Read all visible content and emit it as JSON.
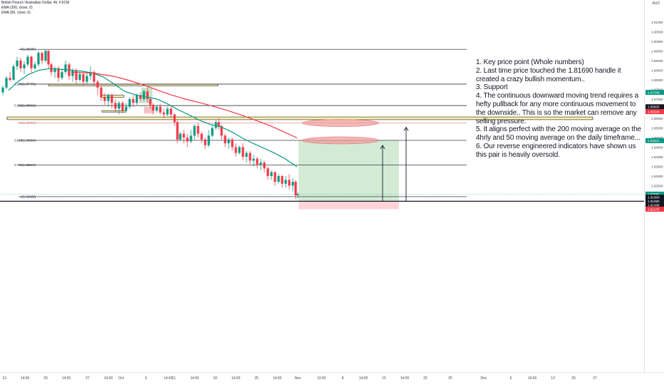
{
  "header": {
    "symbol_line": "British Pound / Australian Dollar, 4h, FXCM",
    "ema200_label": "EMA (200, close, 0)",
    "ema50_label": "EMA (50, close, 0)",
    "currency": "AUD"
  },
  "annotation": {
    "text": "1. Key price point (Whole numbers)\n2. Last time price touched the 1.81690 handle it created a crazy bullish momentum..\n3. Support\n4. The continuous downward moving trend requires a hefty pullback for any more continuous movement to the downside.. This is so the market can remove any selling pressure.\n5. It aligns perfect with the 200 moving average on the 4hrly and 50 moving average on the daily timeframe...\n6. Our reverse engineered indicators have shown us this pair is heavily oversold."
  },
  "chart_data": {
    "type": "candlestick",
    "timeframe": "4h",
    "y_axis": {
      "range": [
        1.8115,
        1.9125
      ],
      "ticks": [
        "1.91000",
        "1.90500",
        "1.90000",
        "1.89500",
        "1.89000",
        "1.88500",
        "1.88000",
        "1.87500",
        "1.87000",
        "1.86500",
        "1.86000",
        "1.85500",
        "1.85000",
        "1.84500",
        "1.84000",
        "1.83500",
        "1.83000",
        "1.82500",
        "1.82000",
        "1.81500"
      ],
      "price_tags": [
        {
          "value": 1.87348,
          "label": "1.87348",
          "color": "#089981"
        },
        {
          "value": 1.866,
          "label": "1.86600",
          "color": "#131722"
        },
        {
          "value": 1.86346,
          "label": "1.86346",
          "color": "#f23645"
        },
        {
          "value": 1.84841,
          "label": "1.84841",
          "color": "#089981"
        },
        {
          "value": 1.8206,
          "label": "1.82060",
          "color": "#089981"
        },
        {
          "value": 1.819,
          "label": "1.81900",
          "color": "#131722"
        },
        {
          "value": 1.8169,
          "label": "1.81690",
          "color": "#131722"
        },
        {
          "value": 1.81488,
          "label": "1.81488",
          "color": "#131722"
        },
        {
          "value": 1.81278,
          "label": "1.81278",
          "color": "#f23645"
        }
      ]
    },
    "x_axis": {
      "ticks": [
        "13",
        "14:00",
        "20",
        "14:00",
        "27",
        "14:00",
        "Oct",
        "6",
        "14:00",
        "11",
        "14:00",
        "18",
        "14:00",
        "25",
        "14:00",
        "Nov",
        "13:00",
        "8",
        "14:00",
        "15",
        "14:00",
        "22",
        "25",
        "Dec",
        "6",
        "14:00",
        "13",
        "20",
        "27"
      ]
    },
    "fibonacci": [
      {
        "level": "0",
        "value": 1.89586,
        "label": "0(1.89586)"
      },
      {
        "level": "0.236",
        "value": 1.87779,
        "label": "0.236(1.87779)"
      },
      {
        "level": "0.382",
        "value": 1.86661,
        "label": "0.382(1.86661)"
      },
      {
        "level": "0.5",
        "value": 1.85757,
        "label": "0.5(1.85757)",
        "color": "#e57373"
      },
      {
        "level": "0.618",
        "value": 1.84854,
        "label": "0.618(1.84854)"
      },
      {
        "level": "0.786",
        "value": 1.83567,
        "label": "0.786(1.83567)"
      },
      {
        "level": "1",
        "value": 1.81928,
        "label": "1(1.81928)"
      }
    ],
    "series": [
      {
        "name": "EMA (50, close, 0)",
        "color": "#089981",
        "points": [
          [
            12,
            1.8745
          ],
          [
            25,
            1.879
          ],
          [
            40,
            1.8828
          ],
          [
            55,
            1.885
          ],
          [
            70,
            1.8858
          ],
          [
            85,
            1.8855
          ],
          [
            100,
            1.885
          ],
          [
            115,
            1.8845
          ],
          [
            130,
            1.8835
          ],
          [
            145,
            1.8815
          ],
          [
            160,
            1.8778
          ],
          [
            175,
            1.874
          ],
          [
            190,
            1.8722
          ],
          [
            205,
            1.8712
          ],
          [
            220,
            1.87
          ],
          [
            235,
            1.8675
          ],
          [
            250,
            1.8645
          ],
          [
            265,
            1.8618
          ],
          [
            280,
            1.859
          ],
          [
            295,
            1.8568
          ],
          [
            310,
            1.8555
          ],
          [
            325,
            1.853
          ],
          [
            340,
            1.8498
          ],
          [
            355,
            1.847
          ],
          [
            370,
            1.8445
          ],
          [
            385,
            1.842
          ],
          [
            400,
            1.839
          ],
          [
            417,
            1.8348
          ]
        ]
      },
      {
        "name": "EMA (200, close, 0)",
        "color": "#f23645",
        "points": [
          [
            100,
            1.884
          ],
          [
            130,
            1.8835
          ],
          [
            160,
            1.8818
          ],
          [
            180,
            1.8798
          ],
          [
            200,
            1.8775
          ],
          [
            220,
            1.8748
          ],
          [
            240,
            1.8722
          ],
          [
            260,
            1.87
          ],
          [
            280,
            1.8682
          ],
          [
            300,
            1.8662
          ],
          [
            320,
            1.864
          ],
          [
            340,
            1.8615
          ],
          [
            360,
            1.8588
          ],
          [
            380,
            1.856
          ],
          [
            400,
            1.8527
          ],
          [
            417,
            1.8498
          ]
        ]
      }
    ],
    "candles": [
      [
        4,
        1.8735,
        1.876,
        1.872,
        1.877
      ],
      [
        9,
        1.876,
        1.881,
        1.875,
        1.882
      ],
      [
        14,
        1.881,
        1.88,
        1.879,
        1.884
      ],
      [
        19,
        1.88,
        1.887,
        1.8795,
        1.888
      ],
      [
        24,
        1.887,
        1.89,
        1.885,
        1.892
      ],
      [
        29,
        1.89,
        1.886,
        1.884,
        1.8915
      ],
      [
        34,
        1.886,
        1.888,
        1.883,
        1.8895
      ],
      [
        39,
        1.888,
        1.892,
        1.887,
        1.893
      ],
      [
        44,
        1.892,
        1.886,
        1.884,
        1.8925
      ],
      [
        49,
        1.886,
        1.888,
        1.885,
        1.8895
      ],
      [
        54,
        1.888,
        1.894,
        1.887,
        1.895
      ],
      [
        59,
        1.894,
        1.89,
        1.888,
        1.8945
      ],
      [
        64,
        1.89,
        1.895,
        1.889,
        1.8959
      ],
      [
        68,
        1.895,
        1.888,
        1.886,
        1.8955
      ],
      [
        72,
        1.888,
        1.884,
        1.882,
        1.889
      ],
      [
        77,
        1.884,
        1.886,
        1.881,
        1.887
      ],
      [
        82,
        1.886,
        1.881,
        1.879,
        1.887
      ],
      [
        87,
        1.881,
        1.884,
        1.88,
        1.8855
      ],
      [
        92,
        1.884,
        1.888,
        1.883,
        1.89
      ],
      [
        97,
        1.888,
        1.882,
        1.88,
        1.889
      ],
      [
        102,
        1.882,
        1.885,
        1.879,
        1.886
      ],
      [
        107,
        1.885,
        1.88,
        1.878,
        1.886
      ],
      [
        112,
        1.88,
        1.883,
        1.879,
        1.8845
      ],
      [
        117,
        1.883,
        1.879,
        1.877,
        1.8845
      ],
      [
        122,
        1.879,
        1.882,
        1.878,
        1.8835
      ],
      [
        127,
        1.882,
        1.884,
        1.88,
        1.887
      ],
      [
        132,
        1.884,
        1.879,
        1.877,
        1.885
      ],
      [
        137,
        1.879,
        1.876,
        1.872,
        1.88
      ],
      [
        142,
        1.876,
        1.871,
        1.869,
        1.877
      ],
      [
        147,
        1.871,
        1.869,
        1.867,
        1.873
      ],
      [
        152,
        1.869,
        1.872,
        1.866,
        1.873
      ],
      [
        157,
        1.872,
        1.868,
        1.865,
        1.873
      ],
      [
        162,
        1.868,
        1.865,
        1.863,
        1.87
      ],
      [
        167,
        1.865,
        1.868,
        1.862,
        1.869
      ],
      [
        172,
        1.868,
        1.864,
        1.8625,
        1.869
      ],
      [
        177,
        1.864,
        1.866,
        1.863,
        1.868
      ],
      [
        182,
        1.866,
        1.87,
        1.865,
        1.871
      ],
      [
        187,
        1.87,
        1.868,
        1.866,
        1.872
      ],
      [
        192,
        1.868,
        1.872,
        1.867,
        1.873
      ],
      [
        197,
        1.872,
        1.87,
        1.868,
        1.8735
      ],
      [
        202,
        1.87,
        1.874,
        1.869,
        1.875
      ],
      [
        207,
        1.874,
        1.87,
        1.868,
        1.876
      ],
      [
        211,
        1.87,
        1.867,
        1.865,
        1.871
      ],
      [
        215,
        1.867,
        1.864,
        1.862,
        1.868
      ],
      [
        220,
        1.864,
        1.866,
        1.863,
        1.867
      ],
      [
        225,
        1.866,
        1.863,
        1.862,
        1.8675
      ],
      [
        230,
        1.863,
        1.862,
        1.86,
        1.865
      ],
      [
        235,
        1.862,
        1.865,
        1.861,
        1.866
      ],
      [
        240,
        1.865,
        1.862,
        1.86,
        1.866
      ],
      [
        245,
        1.862,
        1.858,
        1.856,
        1.8625
      ],
      [
        249,
        1.858,
        1.849,
        1.847,
        1.859
      ],
      [
        253,
        1.849,
        1.852,
        1.848,
        1.853
      ],
      [
        258,
        1.852,
        1.85,
        1.847,
        1.854
      ],
      [
        263,
        1.85,
        1.848,
        1.845,
        1.852
      ],
      [
        268,
        1.848,
        1.851,
        1.847,
        1.854
      ],
      [
        273,
        1.851,
        1.856,
        1.849,
        1.857
      ],
      [
        278,
        1.856,
        1.852,
        1.85,
        1.8575
      ],
      [
        283,
        1.852,
        1.849,
        1.847,
        1.853
      ],
      [
        288,
        1.849,
        1.846,
        1.844,
        1.85
      ],
      [
        293,
        1.846,
        1.851,
        1.845,
        1.854
      ],
      [
        298,
        1.851,
        1.855,
        1.85,
        1.857
      ],
      [
        303,
        1.855,
        1.858,
        1.854,
        1.859
      ],
      [
        307,
        1.858,
        1.856,
        1.854,
        1.8601
      ],
      [
        311,
        1.856,
        1.851,
        1.849,
        1.8565
      ],
      [
        316,
        1.851,
        1.847,
        1.845,
        1.852
      ],
      [
        321,
        1.847,
        1.849,
        1.844,
        1.85
      ],
      [
        326,
        1.849,
        1.845,
        1.843,
        1.85
      ],
      [
        331,
        1.845,
        1.842,
        1.84,
        1.847
      ],
      [
        336,
        1.842,
        1.845,
        1.841,
        1.846
      ],
      [
        341,
        1.845,
        1.84,
        1.838,
        1.847
      ],
      [
        346,
        1.84,
        1.842,
        1.837,
        1.843
      ],
      [
        351,
        1.842,
        1.838,
        1.836,
        1.843
      ],
      [
        356,
        1.838,
        1.839,
        1.835,
        1.841
      ],
      [
        361,
        1.839,
        1.836,
        1.834,
        1.84
      ],
      [
        366,
        1.836,
        1.837,
        1.833,
        1.839
      ],
      [
        371,
        1.837,
        1.834,
        1.832,
        1.838
      ],
      [
        376,
        1.834,
        1.83,
        1.828,
        1.835
      ],
      [
        381,
        1.83,
        1.832,
        1.828,
        1.833
      ],
      [
        386,
        1.832,
        1.827,
        1.825,
        1.8325
      ],
      [
        391,
        1.827,
        1.83,
        1.826,
        1.831
      ],
      [
        396,
        1.83,
        1.826,
        1.824,
        1.8305
      ],
      [
        401,
        1.826,
        1.828,
        1.824,
        1.83
      ],
      [
        406,
        1.828,
        1.825,
        1.823,
        1.831
      ],
      [
        411,
        1.825,
        1.827,
        1.822,
        1.829
      ],
      [
        415,
        1.827,
        1.82,
        1.818,
        1.828
      ],
      [
        418,
        1.82,
        1.8205,
        1.8185,
        1.8215
      ]
    ],
    "zones": [
      {
        "type": "resistance-zone",
        "value_top": 1.8607,
        "value_bottom": 1.8593,
        "color": "#fff59d"
      },
      {
        "type": "small-zone",
        "value_top": 1.8777,
        "value_bottom": 1.8769,
        "color": "#fff59d"
      },
      {
        "type": "small-zone",
        "value_top": 1.872,
        "value_bottom": 1.871,
        "color": "#fff59d"
      },
      {
        "type": "small-zone",
        "value_top": 1.864,
        "value_bottom": 1.8633,
        "color": "#fff59d"
      },
      {
        "type": "target-zone",
        "value_top": 1.84854,
        "value_bottom": 1.8169,
        "color": "#c8e6c9"
      },
      {
        "type": "stop-zone",
        "value_top": 1.8169,
        "value_bottom": 1.81278,
        "color": "#ffcdd2"
      }
    ],
    "targets": [
      {
        "value": 1.85757,
        "color": "#ef9a9a"
      },
      {
        "value": 1.84854,
        "color": "#ef9a9a"
      }
    ]
  }
}
